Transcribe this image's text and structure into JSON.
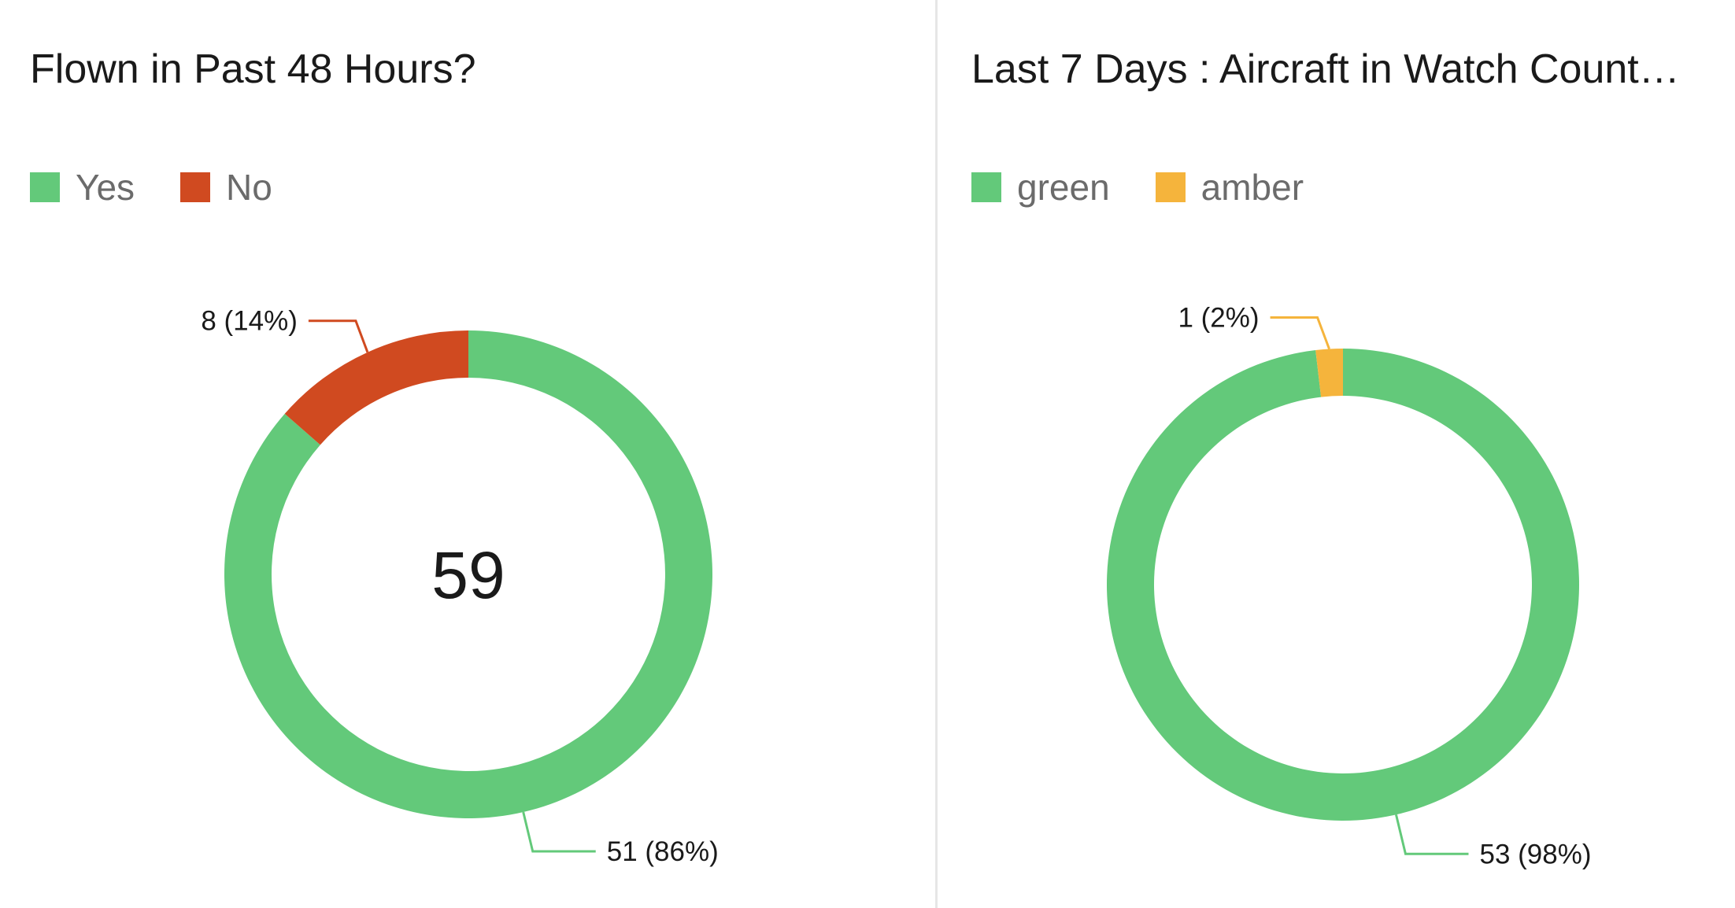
{
  "chart_data": [
    {
      "type": "pie",
      "title": "Flown in Past 48 Hours?",
      "center_total": "59",
      "legend_position": "top-left",
      "slices": [
        {
          "label": "Yes",
          "value": 51,
          "percent": 86,
          "data_label": "51 (86%)",
          "color": "#63c97a"
        },
        {
          "label": "No",
          "value": 8,
          "percent": 14,
          "data_label": "8 (14%)",
          "color": "#d04a20"
        }
      ]
    },
    {
      "type": "pie",
      "title": "Last 7 Days : Aircraft in Watch Count…",
      "center_total": "",
      "legend_position": "top-left",
      "slices": [
        {
          "label": "green",
          "value": 53,
          "percent": 98,
          "data_label": "53 (98%)",
          "color": "#63c97a"
        },
        {
          "label": "amber",
          "value": 1,
          "percent": 2,
          "data_label": "1 (2%)",
          "color": "#f5b43c"
        }
      ]
    }
  ]
}
